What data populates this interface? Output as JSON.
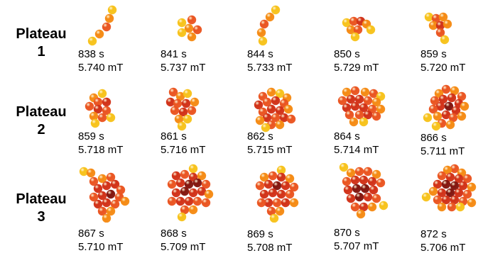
{
  "colors": {
    "yellow": "#f7c21a",
    "light_orange": "#f58a13",
    "orange": "#ea5420",
    "red": "#d13117",
    "dark_red": "#82150e",
    "text": "#000000"
  },
  "plateaus": [
    {
      "label_line1": "Plateau",
      "label_line2": "1",
      "snapshots": [
        {
          "time": "838 s",
          "field": "5.740 mT"
        },
        {
          "time": "841 s",
          "field": "5.737 mT"
        },
        {
          "time": "844 s",
          "field": "5.733 mT"
        },
        {
          "time": "850 s",
          "field": "5.729 mT"
        },
        {
          "time": "859 s",
          "field": "5.720 mT"
        }
      ]
    },
    {
      "label_line1": "Plateau",
      "label_line2": "2",
      "snapshots": [
        {
          "time": "859 s",
          "field": "5.718 mT"
        },
        {
          "time": "861 s",
          "field": "5.716 mT"
        },
        {
          "time": "862 s",
          "field": "5.715 mT"
        },
        {
          "time": "864 s",
          "field": "5.714 mT"
        },
        {
          "time": "866 s",
          "field": "5.711 mT"
        }
      ]
    },
    {
      "label_line1": "Plateau",
      "label_line2": "3",
      "snapshots": [
        {
          "time": "867 s",
          "field": "5.710 mT"
        },
        {
          "time": "868 s",
          "field": "5.709 mT"
        },
        {
          "time": "869 s",
          "field": "5.708 mT"
        },
        {
          "time": "870 s",
          "field": "5.707 mT"
        },
        {
          "time": "872 s",
          "field": "5.706 mT"
        }
      ]
    }
  ]
}
